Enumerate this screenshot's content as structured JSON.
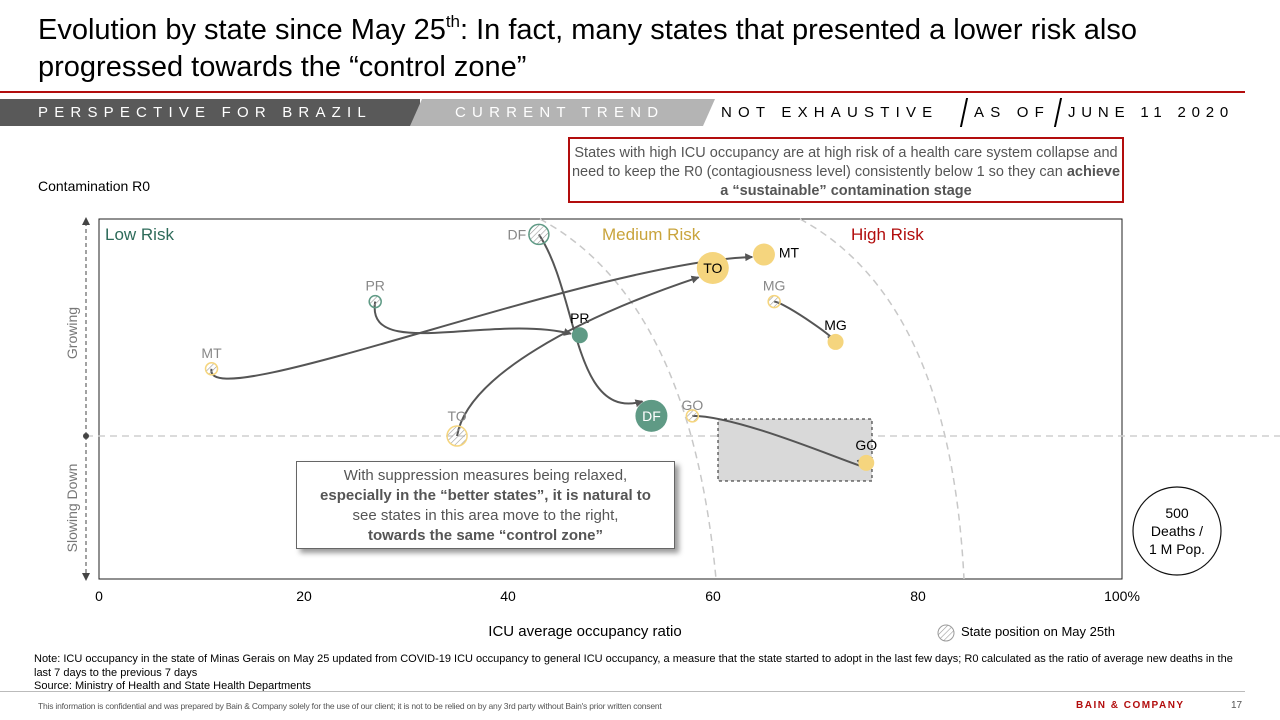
{
  "slide": {
    "title_a": "Evolution by state since May 25",
    "title_sup": "th",
    "title_b": ": In fact, many states that presented a lower risk also progressed towards the “control zone”",
    "banner_left": "PERSPECTIVE FOR BRAZIL",
    "banner_mid": "CURRENT TREND",
    "banner_right1": "NOT EXHAUSTIVE",
    "banner_right2": "AS OF",
    "banner_right3": "JUNE 11 2020",
    "top_note_1": "States with high ICU occupancy are at high risk of a health care system collapse and need to keep the R0 (contagiousness level) consistently below 1 so they can ",
    "top_note_2": "achieve a “sustainable” contamination stage",
    "callout_1": "With suppression measures being relaxed, ",
    "callout_2": "especially in the “better states”, it is natural to",
    "callout_3": " see states in this area move to the right, ",
    "callout_4": "towards the same “control zone”",
    "footnote_1": "Note: ICU occupancy in the state of Minas Gerais on May 25 updated from COVID-19 ICU occupancy to general ICU occupancy,  a measure that the state started to adopt in the last few days; R0 calculated as the ratio of average new deaths in the last 7 days to the previous 7 days",
    "footnote_2": "Source: Ministry of Health and State Health Departments",
    "confidential": "This information is confidential and was prepared by Bain & Company solely for the use of our client; it is not to be relied on by any 3rd party without Bain's prior written consent",
    "brand": "BAIN & COMPANY",
    "page_number": "17"
  },
  "colors": {
    "accent_red": "#b20d0d",
    "green": "#5f9a85",
    "yellow": "#f5d57e",
    "low_risk": "#2e6b5a",
    "medium_risk": "#c9a43c",
    "high_risk": "#b20d0d"
  },
  "chart_data": {
    "type": "scatter",
    "ylabel": "Contamination R0",
    "xlabel": "ICU average occupancy ratio",
    "xlim": [
      0,
      100
    ],
    "x_ticks": [
      "0",
      "20",
      "40",
      "60",
      "80",
      "100%"
    ],
    "y_arrow_labels": {
      "up": "Growing",
      "down": "Slowing Down"
    },
    "zones": [
      "Low Risk",
      "Medium Risk",
      "High Risk"
    ],
    "legend": "State position on May 25th",
    "bubble_size_label": "500 Deaths / 1 M Pop.",
    "states": [
      {
        "name": "DF",
        "may25": {
          "x": 43,
          "y": 1.3
        },
        "now": {
          "x": 54,
          "y": 1.03
        },
        "color": "green"
      },
      {
        "name": "PR",
        "may25": {
          "x": 27,
          "y": 1.2
        },
        "now": {
          "x": 47,
          "y": 1.15
        },
        "color": "green"
      },
      {
        "name": "MT",
        "may25": {
          "x": 11,
          "y": 1.1
        },
        "now": {
          "x": 65,
          "y": 1.27
        },
        "color": "yellow"
      },
      {
        "name": "TO",
        "may25": {
          "x": 35,
          "y": 1.0
        },
        "now": {
          "x": 60,
          "y": 1.25
        },
        "color": "yellow"
      },
      {
        "name": "MG",
        "may25": {
          "x": 66,
          "y": 1.2
        },
        "now": {
          "x": 72,
          "y": 1.14
        },
        "color": "yellow"
      },
      {
        "name": "GO",
        "may25": {
          "x": 58,
          "y": 1.03
        },
        "now": {
          "x": 75,
          "y": 0.96
        },
        "color": "yellow"
      }
    ]
  }
}
